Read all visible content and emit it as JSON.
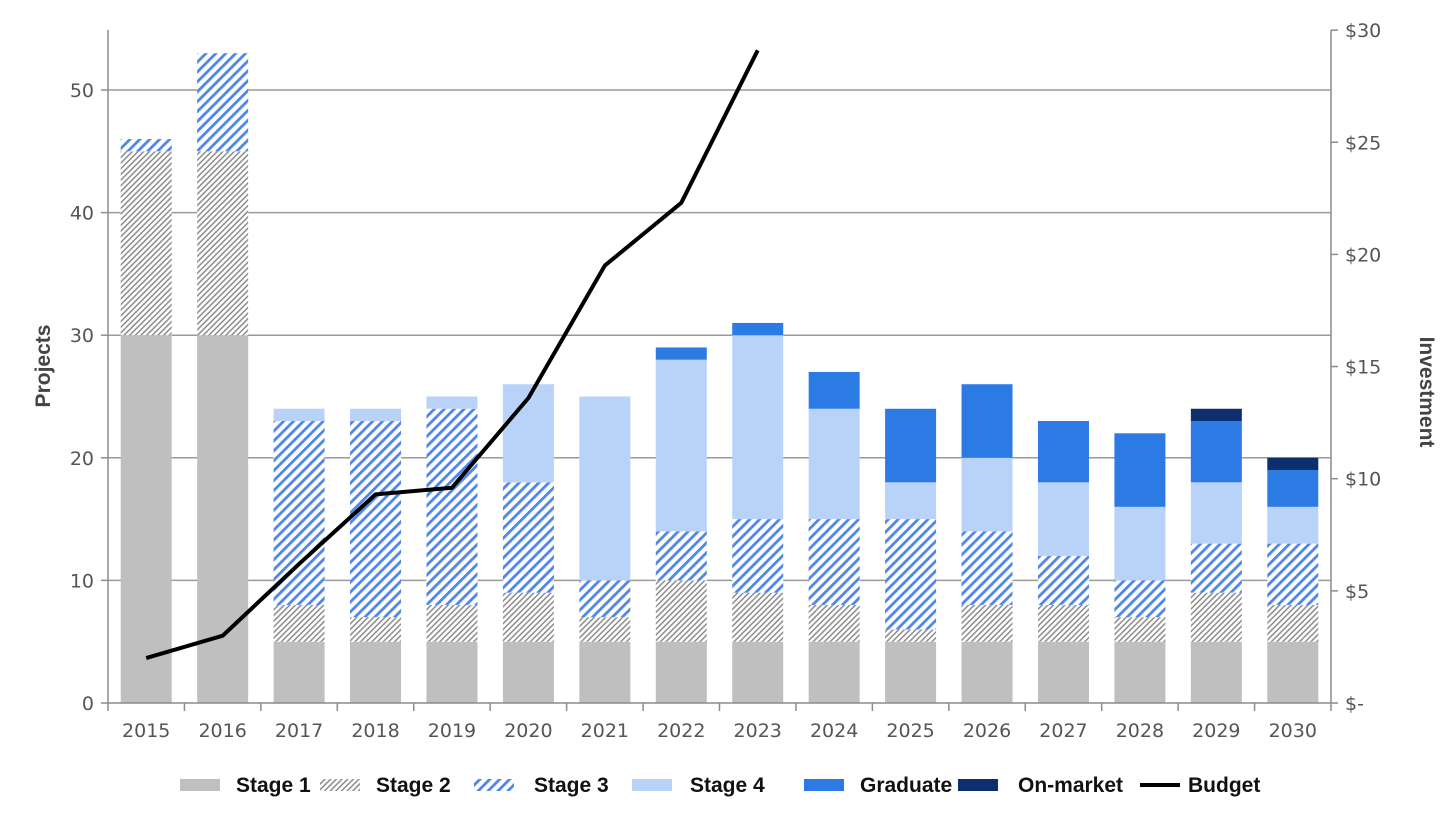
{
  "chart_data": {
    "type": "bar",
    "stacked": true,
    "categories": [
      "2015",
      "2016",
      "2017",
      "2018",
      "2019",
      "2020",
      "2021",
      "2022",
      "2023",
      "2024",
      "2025",
      "2026",
      "2027",
      "2028",
      "2029",
      "2030"
    ],
    "series": [
      {
        "name": "Stage 1",
        "values": [
          30,
          30,
          5,
          5,
          5,
          5,
          5,
          5,
          5,
          5,
          5,
          5,
          5,
          5,
          5,
          5
        ],
        "color": "#bfbfbf",
        "pattern": "solid"
      },
      {
        "name": "Stage 2",
        "values": [
          15,
          15,
          3,
          2,
          3,
          4,
          2,
          5,
          4,
          3,
          1,
          3,
          3,
          2,
          4,
          3
        ],
        "color": "#8c8c8c",
        "pattern": "dense-diagonal-hatch"
      },
      {
        "name": "Stage 3",
        "values": [
          1,
          8,
          15,
          16,
          16,
          9,
          3,
          4,
          6,
          7,
          9,
          6,
          4,
          3,
          4,
          5
        ],
        "color": "#4f86e8",
        "pattern": "diagonal-hatch"
      },
      {
        "name": "Stage 4",
        "values": [
          0,
          0,
          1,
          1,
          1,
          8,
          15,
          14,
          15,
          9,
          3,
          6,
          6,
          6,
          5,
          3
        ],
        "color": "#b9d2f8",
        "pattern": "solid"
      },
      {
        "name": "Graduate",
        "values": [
          0,
          0,
          0,
          0,
          0,
          0,
          0,
          1,
          1,
          3,
          6,
          6,
          5,
          6,
          5,
          3
        ],
        "color": "#2c7be5",
        "pattern": "solid"
      },
      {
        "name": "On-market",
        "values": [
          0,
          0,
          0,
          0,
          0,
          0,
          0,
          0,
          0,
          0,
          0,
          0,
          0,
          0,
          1,
          1
        ],
        "color": "#0d2f6e",
        "pattern": "solid"
      }
    ],
    "line_series": {
      "name": "Budget",
      "axis": "right",
      "color": "#000000",
      "x": [
        "2015",
        "2016",
        "2017",
        "2018",
        "2019",
        "2020",
        "2021",
        "2022",
        "2023"
      ],
      "values": [
        2,
        3,
        6.2,
        9.3,
        9.6,
        13.6,
        19.5,
        22.3,
        29.1
      ]
    },
    "ylabel": "Projects",
    "ylabel_right": "Investment",
    "ylim": [
      0,
      55
    ],
    "ylim_right": [
      0,
      30
    ],
    "yticks": [
      0,
      10,
      20,
      30,
      40,
      50
    ],
    "yticks_right": [
      0,
      5,
      10,
      15,
      20,
      25,
      30
    ],
    "ytick_labels": [
      "0",
      "10",
      "20",
      "30",
      "40",
      "50"
    ],
    "ytick_labels_right": [
      "$-",
      "$5",
      "$10",
      "$15",
      "$20",
      "$25",
      "$30"
    ],
    "grid": true,
    "legend": "bottom",
    "legend_labels": [
      "Stage 1",
      "Stage 2",
      "Stage 3",
      "Stage 4",
      "Graduate",
      "On-market",
      "Budget"
    ]
  }
}
